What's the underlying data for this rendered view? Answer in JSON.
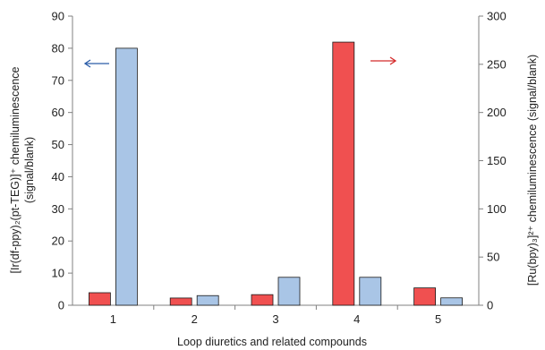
{
  "chart_data": {
    "type": "bar",
    "xlabel": "Loop diuretics and related compounds",
    "categories": [
      "1",
      "2",
      "3",
      "4",
      "5"
    ],
    "left_axis": {
      "label_lines": [
        "[Ir(df-ppy)₂(pt-TEG)]⁺ chemiluminescence",
        "(signal/blank)"
      ],
      "ylim": [
        0,
        90
      ],
      "ticks": [
        "0",
        "10",
        "20",
        "30",
        "40",
        "50",
        "60",
        "70",
        "80",
        "90"
      ]
    },
    "right_axis": {
      "label": "[Ru(bpy)₃]²⁺ chemiluminescence (signal/blank)",
      "ylim": [
        0,
        300
      ],
      "ticks": [
        "0",
        "50",
        "100",
        "150",
        "200",
        "250",
        "300"
      ]
    },
    "series": [
      {
        "axis": "right",
        "color": "#f05050",
        "values": [
          13,
          7.5,
          11,
          273,
          18
        ]
      },
      {
        "axis": "left",
        "color": "#a9c5e6",
        "values": [
          80,
          3,
          8.7,
          8.7,
          2.3
        ]
      }
    ],
    "annotations": [
      {
        "type": "arrow-left",
        "color": "#2a5ca8",
        "points_to": "left-axis"
      },
      {
        "type": "arrow-right",
        "color": "#d42a2a",
        "points_to": "right-axis"
      }
    ],
    "grid": false,
    "legend": "none"
  }
}
